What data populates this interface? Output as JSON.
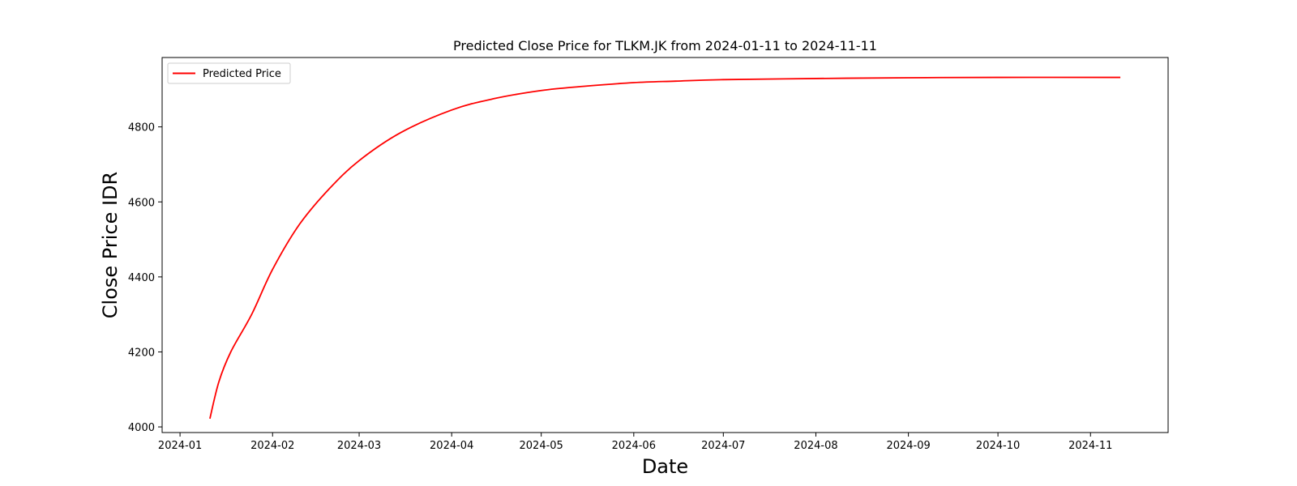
{
  "chart_data": {
    "type": "line",
    "title": "Predicted Close Price for TLKM.JK from 2024-01-11 to 2024-11-11",
    "xlabel": "Date",
    "ylabel": "Close Price IDR",
    "xlim": [
      "2023-12-26",
      "2024-11-27"
    ],
    "ylim": [
      3985,
      4985
    ],
    "x_ticks": [
      "2024-01",
      "2024-02",
      "2024-03",
      "2024-04",
      "2024-05",
      "2024-06",
      "2024-07",
      "2024-08",
      "2024-09",
      "2024-10",
      "2024-11"
    ],
    "y_ticks": [
      4000,
      4200,
      4400,
      4600,
      4800
    ],
    "grid": false,
    "legend": {
      "placement": "top-left",
      "entries": [
        "Predicted Price"
      ]
    },
    "series": [
      {
        "name": "Predicted Price",
        "color": "#ff0000",
        "x": [
          "2024-01-11",
          "2024-01-14",
          "2024-01-18",
          "2024-01-25",
          "2024-02-01",
          "2024-02-10",
          "2024-02-20",
          "2024-03-01",
          "2024-03-15",
          "2024-04-01",
          "2024-04-15",
          "2024-05-01",
          "2024-05-15",
          "2024-06-01",
          "2024-06-15",
          "2024-07-01",
          "2024-08-01",
          "2024-09-01",
          "2024-10-01",
          "2024-11-11"
        ],
        "y": [
          4022,
          4120,
          4200,
          4300,
          4420,
          4540,
          4635,
          4710,
          4785,
          4845,
          4875,
          4897,
          4908,
          4918,
          4922,
          4926,
          4929,
          4931,
          4932,
          4932
        ]
      }
    ]
  }
}
